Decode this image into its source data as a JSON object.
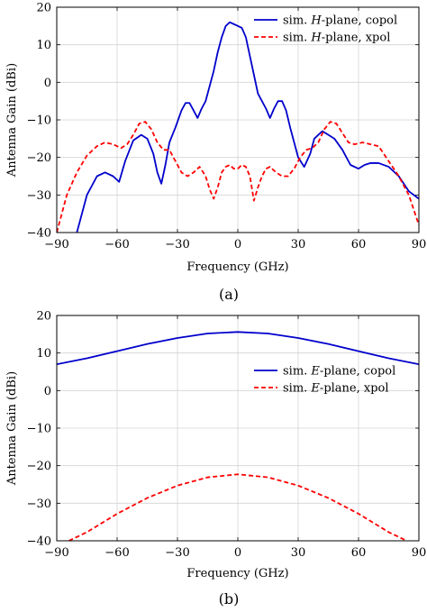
{
  "chart_data": [
    {
      "type": "line",
      "caption": "(a)",
      "xlabel": "Frequency (GHz)",
      "ylabel": "Antenna Gain (dBi)",
      "xlim": [
        -90,
        90
      ],
      "ylim": [
        -40,
        20
      ],
      "xticks": [
        "−90",
        "−60",
        "−30",
        "0",
        "30",
        "60",
        "90"
      ],
      "yticks": [
        "−40",
        "−30",
        "−20",
        "−10",
        "0",
        "10",
        "20"
      ],
      "grid": true,
      "legend_position": "top-right",
      "legend": [
        {
          "prefix": "sim. ",
          "italic": "H",
          "suffix": "-plane, copol"
        },
        {
          "prefix": "sim. ",
          "italic": "H",
          "suffix": "-plane, xpol"
        }
      ],
      "series": [
        {
          "name": "sim. H-plane, copol",
          "color": "#0000cc",
          "dash": "solid",
          "x": [
            -80,
            -75,
            -70,
            -66,
            -62,
            -59,
            -56,
            -52,
            -48,
            -45,
            -42,
            -40,
            -38,
            -36,
            -34,
            -31,
            -28,
            -26,
            -24,
            -22,
            -20,
            -18,
            -16,
            -14,
            -12,
            -10,
            -8,
            -6,
            -4,
            -2,
            0,
            2,
            4,
            6,
            8,
            10,
            12,
            14,
            16,
            18,
            20,
            22,
            24,
            26,
            28,
            30,
            33,
            36,
            38,
            42,
            45,
            48,
            52,
            56,
            60,
            63,
            66,
            70,
            75,
            80,
            85,
            90
          ],
          "y": [
            -40,
            -30,
            -25,
            -24,
            -25,
            -26.5,
            -21,
            -15.5,
            -14,
            -15,
            -19,
            -24,
            -27,
            -22,
            -16,
            -12,
            -7.5,
            -5.5,
            -5.5,
            -7.5,
            -9.5,
            -7,
            -5,
            -1,
            3,
            8,
            12,
            15,
            16,
            15.5,
            15,
            14.5,
            12,
            7,
            2,
            -3,
            -5,
            -7,
            -9.5,
            -7,
            -5,
            -5,
            -7.5,
            -12,
            -16,
            -20,
            -22.5,
            -19,
            -15,
            -13,
            -14,
            -15,
            -18,
            -22,
            -23,
            -22,
            -21.5,
            -21.5,
            -22.5,
            -25,
            -29,
            -31
          ]
        },
        {
          "name": "sim. H-plane, xpol",
          "color": "#ff0000",
          "dash": "dashed",
          "x": [
            -90,
            -85,
            -80,
            -75,
            -70,
            -66,
            -62,
            -58,
            -55,
            -52,
            -49,
            -46,
            -43,
            -40,
            -37,
            -34,
            -31,
            -28,
            -25,
            -22,
            -19,
            -16,
            -14,
            -12,
            -10,
            -8,
            -6,
            -4,
            -2,
            0,
            2,
            4,
            6,
            8,
            10,
            12,
            14,
            16,
            19,
            22,
            25,
            28,
            31,
            34,
            37,
            40,
            43,
            46,
            49,
            52,
            55,
            58,
            62,
            66,
            70,
            75,
            80,
            85,
            90
          ],
          "y": [
            -40,
            -30,
            -24,
            -19.5,
            -17,
            -16,
            -16.5,
            -17.5,
            -16.5,
            -14,
            -11,
            -10.5,
            -12.5,
            -16,
            -18,
            -18,
            -21,
            -24,
            -25,
            -24,
            -22.5,
            -25,
            -28.5,
            -31,
            -28,
            -24,
            -22.5,
            -22,
            -23,
            -23,
            -22,
            -22.5,
            -25,
            -31.5,
            -28,
            -25,
            -23,
            -22.5,
            -24,
            -25,
            -25,
            -23,
            -20,
            -18,
            -17.5,
            -16,
            -12.5,
            -10.5,
            -11,
            -13.5,
            -16,
            -16.5,
            -16,
            -16.5,
            -17,
            -21,
            -25,
            -30,
            -38
          ]
        }
      ]
    },
    {
      "type": "line",
      "caption": "(b)",
      "xlabel": "Frequency (GHz)",
      "ylabel": "Antenna Gain (dBi)",
      "xlim": [
        -90,
        90
      ],
      "ylim": [
        -40,
        20
      ],
      "xticks": [
        "−90",
        "−60",
        "−30",
        "0",
        "30",
        "60",
        "90"
      ],
      "yticks": [
        "−40",
        "−30",
        "−20",
        "−10",
        "0",
        "10",
        "20"
      ],
      "grid": true,
      "legend_position": "top-right",
      "legend": [
        {
          "prefix": "sim. ",
          "italic": "E",
          "suffix": "-plane, copol"
        },
        {
          "prefix": "sim. ",
          "italic": "E",
          "suffix": "-plane, xpol"
        }
      ],
      "series": [
        {
          "name": "sim. E-plane, copol",
          "color": "#0000cc",
          "dash": "solid",
          "x": [
            -90,
            -75,
            -60,
            -45,
            -30,
            -15,
            0,
            15,
            30,
            45,
            60,
            75,
            90
          ],
          "y": [
            7,
            8.6,
            10.5,
            12.4,
            14,
            15.2,
            15.6,
            15.2,
            14,
            12.4,
            10.5,
            8.6,
            7
          ]
        },
        {
          "name": "sim. E-plane, xpol",
          "color": "#ff0000",
          "dash": "dashed",
          "x": [
            -84,
            -75,
            -60,
            -45,
            -30,
            -15,
            0,
            15,
            30,
            45,
            60,
            75,
            84
          ],
          "y": [
            -40,
            -37.7,
            -32.8,
            -28.6,
            -25.3,
            -23.1,
            -22.3,
            -23.1,
            -25.3,
            -28.6,
            -32.8,
            -37.7,
            -40
          ]
        }
      ]
    }
  ]
}
